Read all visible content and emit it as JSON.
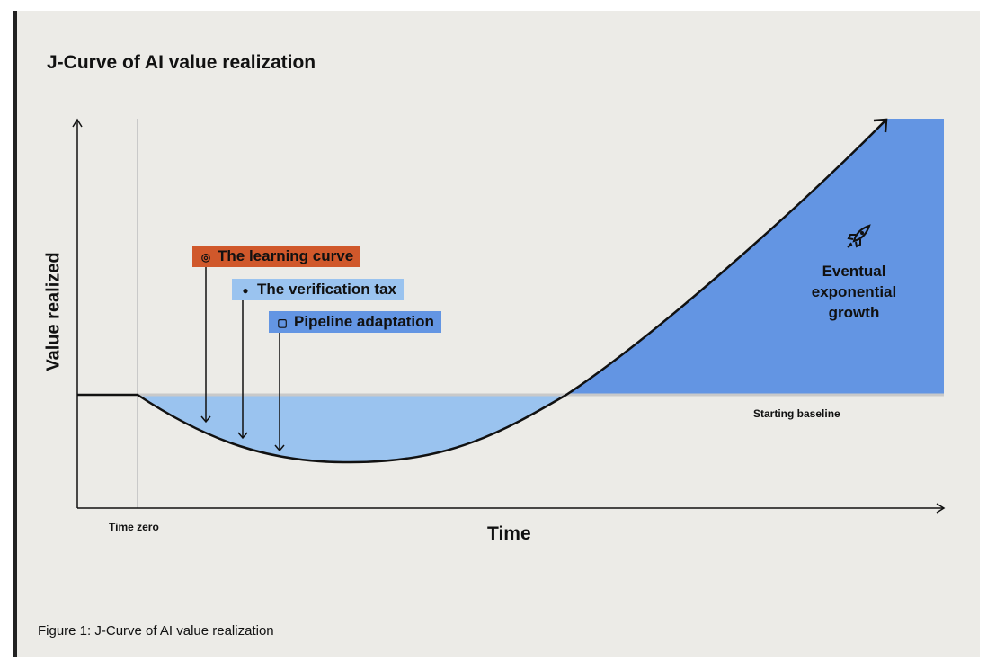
{
  "title": "J-Curve of AI value realization",
  "caption": "Figure 1: J-Curve of AI value realization",
  "chart_data": {
    "type": "line",
    "title": "J-Curve of AI value realization",
    "xlabel": "Time",
    "ylabel": "Value realized",
    "annotations": {
      "time_zero": "Time zero",
      "baseline": "Starting baseline",
      "growth": [
        "Eventual",
        "exponential",
        "growth"
      ]
    },
    "factors": [
      {
        "label": "The learning curve",
        "icon": "head-spiral-icon",
        "color": "#d0582b"
      },
      {
        "label": "The verification tax",
        "icon": "pills-icon",
        "color": "#9ac3ef"
      },
      {
        "label": "Pipeline adaptation",
        "icon": "sparkle-square-icon",
        "color": "#6395e3"
      }
    ],
    "colors": {
      "dip_fill": "#9ac3ef",
      "growth_fill": "#6395e3"
    }
  }
}
